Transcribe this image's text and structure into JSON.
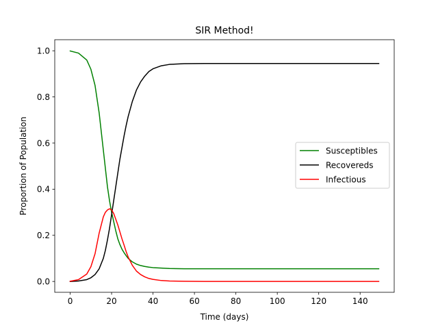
{
  "chart_data": {
    "type": "line",
    "title": "SIR Method!",
    "xlabel": "Time (days)",
    "ylabel": "Proportion of Population",
    "xlim": [
      -7.45,
      156.45
    ],
    "ylim": [
      -0.047,
      1.048
    ],
    "xticks": [
      0,
      20,
      40,
      60,
      80,
      100,
      120,
      140
    ],
    "yticks": [
      0.0,
      0.2,
      0.4,
      0.6,
      0.8,
      1.0
    ],
    "xtick_labels": [
      "0",
      "20",
      "40",
      "60",
      "80",
      "100",
      "120",
      "140"
    ],
    "ytick_labels": [
      "0.0",
      "0.2",
      "0.4",
      "0.6",
      "0.8",
      "1.0"
    ],
    "grid": false,
    "legend_position": "center-right",
    "x": [
      0,
      4,
      8,
      10,
      12,
      14,
      16,
      17,
      18,
      19,
      20,
      21,
      22,
      23,
      24,
      25,
      26,
      27,
      28,
      30,
      32,
      34,
      36,
      38,
      40,
      44,
      48,
      55,
      65,
      80,
      100,
      120,
      149
    ],
    "series": [
      {
        "name": "Susceptibles",
        "color": "#008000",
        "values": [
          0.999,
          0.99,
          0.96,
          0.92,
          0.85,
          0.73,
          0.57,
          0.49,
          0.41,
          0.35,
          0.3,
          0.26,
          0.22,
          0.185,
          0.16,
          0.14,
          0.125,
          0.112,
          0.1,
          0.085,
          0.075,
          0.069,
          0.065,
          0.062,
          0.06,
          0.058,
          0.056,
          0.055,
          0.055,
          0.055,
          0.055,
          0.055,
          0.055
        ]
      },
      {
        "name": "Recovereds",
        "color": "#000000",
        "values": [
          0.0,
          0.002,
          0.008,
          0.016,
          0.03,
          0.055,
          0.1,
          0.135,
          0.18,
          0.23,
          0.29,
          0.35,
          0.41,
          0.47,
          0.53,
          0.58,
          0.63,
          0.675,
          0.715,
          0.78,
          0.83,
          0.865,
          0.89,
          0.91,
          0.922,
          0.935,
          0.941,
          0.944,
          0.945,
          0.945,
          0.945,
          0.945,
          0.945
        ]
      },
      {
        "name": "Infectious",
        "color": "#ff0000",
        "values": [
          0.001,
          0.008,
          0.032,
          0.064,
          0.12,
          0.21,
          0.28,
          0.3,
          0.31,
          0.315,
          0.31,
          0.295,
          0.27,
          0.245,
          0.215,
          0.185,
          0.158,
          0.13,
          0.106,
          0.07,
          0.045,
          0.03,
          0.02,
          0.013,
          0.009,
          0.004,
          0.002,
          0.001,
          0.0,
          0.0,
          0.0,
          0.0,
          0.0
        ]
      }
    ]
  }
}
